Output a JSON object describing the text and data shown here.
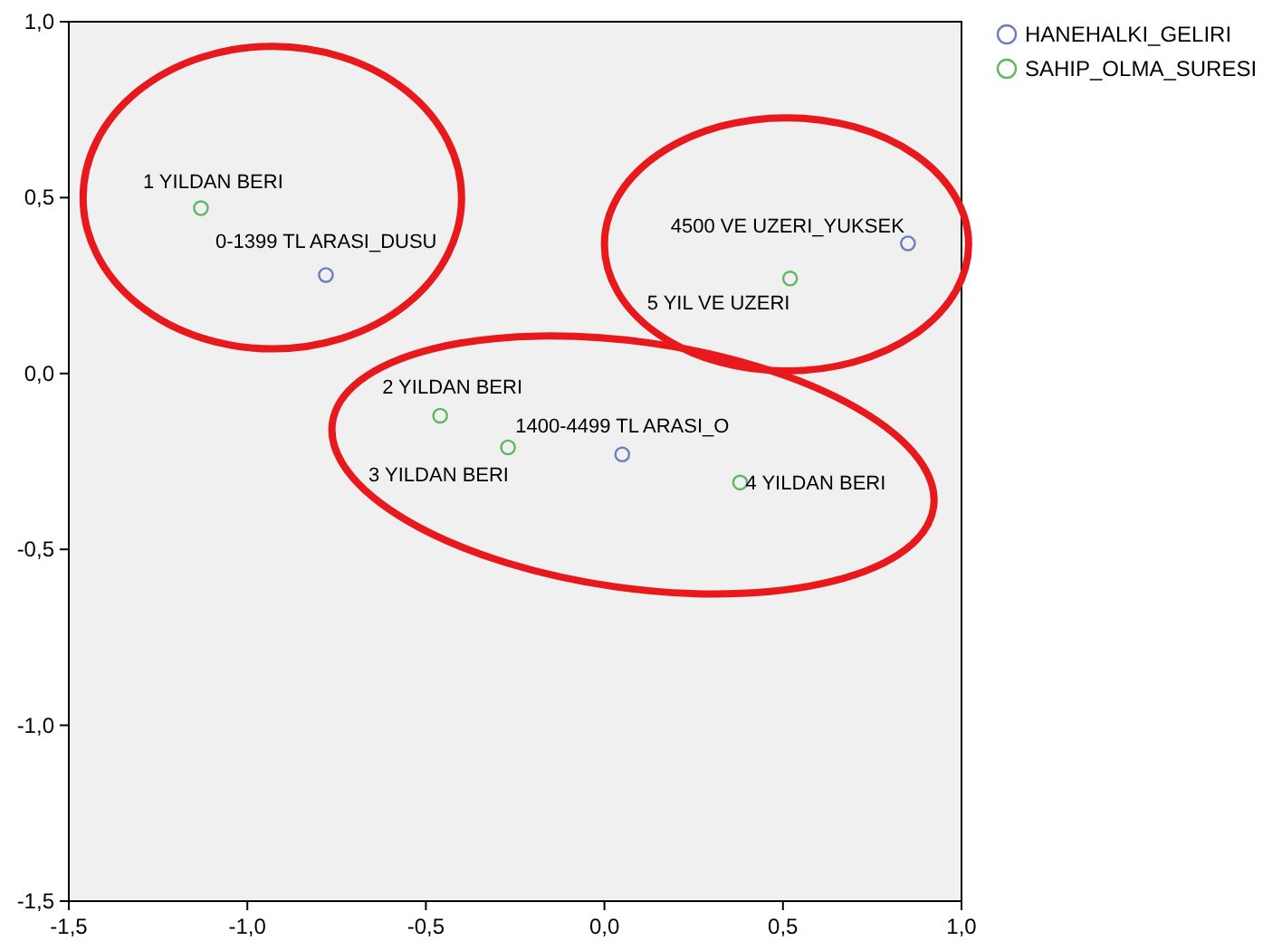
{
  "chart_data": {
    "type": "scatter",
    "marker": "circle",
    "legend": "top right",
    "grid": false,
    "xlim": [
      -1.5,
      1.0
    ],
    "ylim": [
      -1.5,
      1.0
    ],
    "xticks": [
      {
        "value": -1.5,
        "label": "-1,5"
      },
      {
        "value": -1.0,
        "label": "-1,0"
      },
      {
        "value": -0.5,
        "label": "-0,5"
      },
      {
        "value": 0,
        "label": "0,0"
      },
      {
        "value": 0.5,
        "label": "0,5"
      },
      {
        "value": 1.0,
        "label": "1,0"
      }
    ],
    "yticks": [
      {
        "value": -1.5,
        "label": "-1,5"
      },
      {
        "value": -1.0,
        "label": "-1,0"
      },
      {
        "value": -0.5,
        "label": "-0,5"
      },
      {
        "value": 0,
        "label": "0,0"
      },
      {
        "value": 0.5,
        "label": "0,5"
      },
      {
        "value": 1.0,
        "label": "1,0"
      }
    ],
    "series": [
      {
        "name": "HANEHALKI_GELIRI",
        "color": "#6b7fc0",
        "x": [
          -0.78,
          0.85,
          0.05
        ],
        "values": [
          0.28,
          0.37,
          -0.23
        ]
      },
      {
        "name": "SAHIP_OLMA_SURESI",
        "color": "#5fb85f",
        "x": [
          -1.13,
          0.52,
          -0.46,
          -0.27,
          0.38
        ],
        "values": [
          0.47,
          0.27,
          -0.12,
          -0.21,
          -0.31
        ]
      }
    ],
    "annotations": [
      {
        "text": "1 YILDAN BERI",
        "x": -1.13,
        "y": 0.47
      },
      {
        "text": "0-1399 TL ARASI_DUSU",
        "x": -0.78,
        "y": 0.28
      },
      {
        "text": "4500 VE UZERI_YUKSEK",
        "x": 0.85,
        "y": 0.37
      },
      {
        "text": "5 YIL VE UZERI",
        "x": 0.52,
        "y": 0.27
      },
      {
        "text": "2 YILDAN BERI",
        "x": -0.46,
        "y": -0.12
      },
      {
        "text": "3 YILDAN BERI",
        "x": -0.27,
        "y": -0.21
      },
      {
        "text": "1400-4499 TL ARASI_O",
        "x": 0.05,
        "y": -0.23
      },
      {
        "text": "4 YILDAN BERI",
        "x": 0.38,
        "y": -0.31
      }
    ]
  }
}
